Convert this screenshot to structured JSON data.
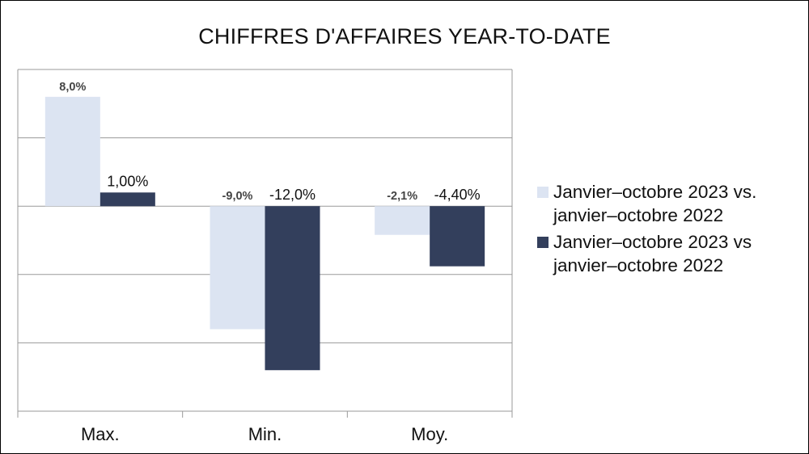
{
  "chart_data": {
    "type": "bar",
    "title": "CHIFFRES D'AFFAIRES YEAR-TO-DATE",
    "categories": [
      "Max.",
      "Min.",
      "Moy."
    ],
    "series": [
      {
        "name": "Janvier–octobre 2023 vs. janvier–octobre 2022",
        "values": [
          8.0,
          -9.0,
          -2.1
        ],
        "labels": [
          "8,0%",
          "-9,0%",
          "-2,1%"
        ],
        "color": "#dce4f2"
      },
      {
        "name": "Janvier–octobre 2023 vs janvier–octobre 2022",
        "values": [
          1.0,
          -12.0,
          -4.4
        ],
        "labels": [
          "1,00%",
          "-12,0%",
          "-4,40%"
        ],
        "color": "#333f5c"
      }
    ],
    "ylim": [
      -15,
      10
    ],
    "grid": true,
    "legend_position": "right"
  }
}
